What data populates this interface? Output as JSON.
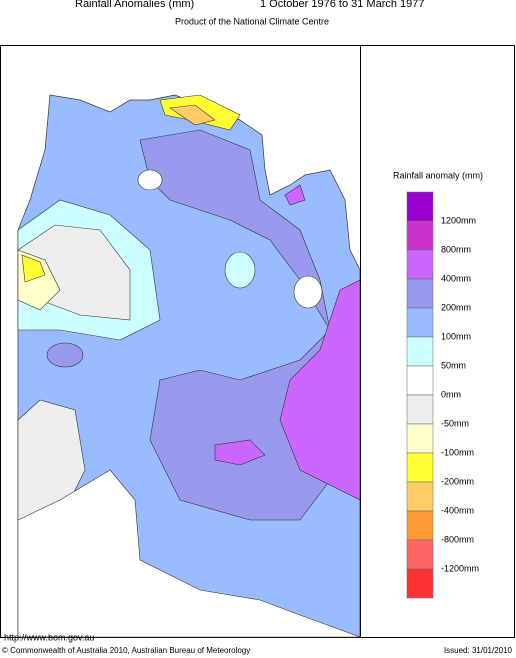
{
  "header": {
    "title": "Rainfall Anomalies (mm)",
    "period": "1 October 1976 to 31 March 1977",
    "subtitle": "Product of the National Climate Centre"
  },
  "legend": {
    "title": "Rainfall anomaly (mm)",
    "colors": [
      "#9900cc",
      "#cc33cc",
      "#cc66ff",
      "#9999ee",
      "#99bbff",
      "#ccffff",
      "#ffffff",
      "#eeeeee",
      "#ffffcc",
      "#ffff33",
      "#ffcc66",
      "#ff9933",
      "#ff6666",
      "#ff3333"
    ],
    "labels": [
      "1200mm",
      "800mm",
      "400mm",
      "200mm",
      "100mm",
      "50mm",
      "0mm",
      "-50mm",
      "-100mm",
      "-200mm",
      "-400mm",
      "-800mm",
      "-1200mm"
    ]
  },
  "footer": {
    "url": "http://www.bom.gov.au",
    "copyright": "© Commonwealth of Australia 2010, Australian Bureau of Meteorology",
    "issued": "Issued: 31/01/2010"
  }
}
